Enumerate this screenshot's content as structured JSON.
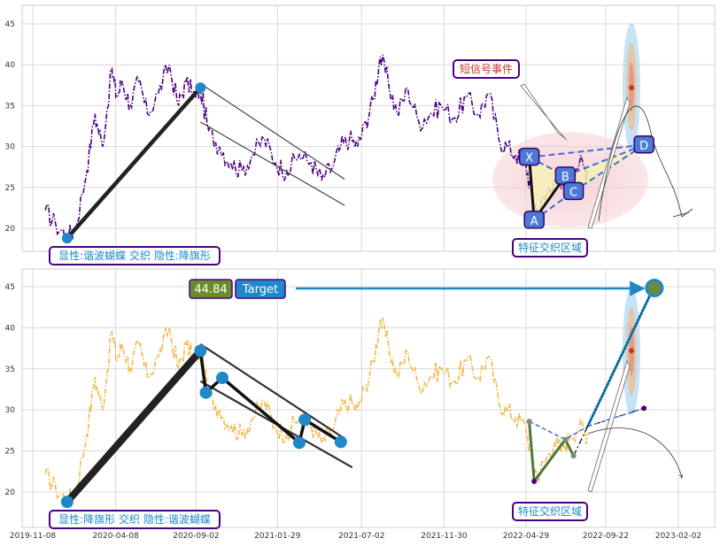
{
  "chart_data": [
    {
      "type": "line",
      "panel": "top",
      "ylim": [
        15,
        47
      ],
      "yticks": [
        20,
        25,
        30,
        35,
        40,
        45
      ],
      "x_date_range": [
        "2019-11-08",
        "2023-02-02"
      ],
      "grid": true,
      "legend": "none",
      "series": [
        {
          "color": "#4b0082",
          "style": "dash-dot",
          "points": [
            [
              "2019-12-01",
              22.2
            ],
            [
              "2019-12-20",
              20.5
            ],
            [
              "2020-01-10",
              19.0
            ],
            [
              "2020-01-25",
              20.0
            ],
            [
              "2020-02-15",
              27.0
            ],
            [
              "2020-03-01",
              34.0
            ],
            [
              "2020-03-15",
              30.0
            ],
            [
              "2020-04-01",
              39.5
            ],
            [
              "2020-04-10",
              36.0
            ],
            [
              "2020-04-20",
              38.0
            ],
            [
              "2020-05-05",
              35.0
            ],
            [
              "2020-05-20",
              38.0
            ],
            [
              "2020-06-05",
              34.0
            ],
            [
              "2020-06-25",
              36.5
            ],
            [
              "2020-07-15",
              40.0
            ],
            [
              "2020-08-01",
              35.0
            ],
            [
              "2020-08-15",
              38.0
            ],
            [
              "2020-09-01",
              36.0
            ],
            [
              "2020-09-10",
              37.0
            ],
            [
              "2020-09-25",
              32.0
            ],
            [
              "2020-10-15",
              30.0
            ],
            [
              "2020-11-05",
              28.0
            ],
            [
              "2020-11-25",
              27.0
            ],
            [
              "2020-12-15",
              29.0
            ],
            [
              "2021-01-05",
              31.0
            ],
            [
              "2021-01-25",
              28.0
            ],
            [
              "2021-02-15",
              27.0
            ],
            [
              "2021-03-10",
              29.0
            ],
            [
              "2021-04-01",
              28.0
            ],
            [
              "2021-04-20",
              26.0
            ],
            [
              "2021-05-10",
              27.5
            ],
            [
              "2021-05-25",
              30.0
            ],
            [
              "2021-06-10",
              31.0
            ],
            [
              "2021-06-25",
              30.0
            ],
            [
              "2021-07-10",
              33.0
            ],
            [
              "2021-07-25",
              36.0
            ],
            [
              "2021-08-05",
              41.0
            ],
            [
              "2021-08-20",
              38.0
            ],
            [
              "2021-09-05",
              34.0
            ],
            [
              "2021-09-25",
              37.0
            ],
            [
              "2021-10-15",
              33.0
            ],
            [
              "2021-11-05",
              34.0
            ],
            [
              "2021-11-25",
              35.0
            ],
            [
              "2021-12-20",
              33.5
            ],
            [
              "2022-01-10",
              36.0
            ],
            [
              "2022-02-01",
              34.0
            ],
            [
              "2022-02-20",
              36.5
            ],
            [
              "2022-03-10",
              31.0
            ],
            [
              "2022-03-25",
              30.0
            ],
            [
              "2022-04-10",
              29.0
            ],
            [
              "2022-04-29",
              28.0
            ],
            [
              "2022-05-10",
              24.0
            ],
            [
              "2022-05-20",
              22.0
            ],
            [
              "2022-06-05",
              24.0
            ],
            [
              "2022-06-20",
              26.0
            ],
            [
              "2022-07-05",
              25.0
            ],
            [
              "2022-07-20",
              27.0
            ],
            [
              "2022-08-05",
              28.0
            ],
            [
              "2022-08-20",
              27.0
            ]
          ]
        }
      ],
      "pattern": {
        "main_trend_line": [
          [
            "2020-01-10",
            18.8
          ],
          [
            "2020-09-10",
            37.2
          ]
        ],
        "flag_channel": [
          [
            [
              "2020-09-10",
              37.7
            ],
            [
              "2021-06-01",
              26.0
            ]
          ],
          [
            [
              "2020-09-10",
              33.0
            ],
            [
              "2021-06-01",
              22.8
            ]
          ]
        ],
        "points": [
          {
            "label": "X",
            "date": "2022-05-05",
            "value": 28.7
          },
          {
            "label": "A",
            "date": "2022-05-14",
            "value": 21.0
          },
          {
            "label": "B",
            "date": "2022-07-10",
            "value": 26.4
          },
          {
            "label": "C",
            "date": "2022-07-25",
            "value": 24.5
          },
          {
            "label": "D",
            "date": "2022-12-01",
            "value": 30.2
          }
        ],
        "projected_target": 37.2
      },
      "annotations": {
        "short_signal": "短信号事件",
        "feature_zone": "特征交织区域",
        "pattern_label": "显性:谐波蝴蝶 交织 隐性:降旗形"
      }
    },
    {
      "type": "line",
      "panel": "bottom",
      "ylim": [
        15,
        47
      ],
      "yticks": [
        20,
        25,
        30,
        35,
        40,
        45
      ],
      "x_date_range": [
        "2019-11-08",
        "2023-02-02"
      ],
      "xticks": [
        "2019-11-08",
        "2020-04-08",
        "2020-09-02",
        "2021-01-29",
        "2021-07-02",
        "2021-11-30",
        "2022-04-29",
        "2022-09-22",
        "2023-02-02"
      ],
      "grid": true,
      "legend": "none",
      "series": [
        {
          "color": "#f0b848",
          "style": "dash-dot",
          "points": [
            [
              "2019-12-01",
              22.2
            ],
            [
              "2019-12-20",
              20.5
            ],
            [
              "2020-01-10",
              19.0
            ],
            [
              "2020-01-25",
              20.0
            ],
            [
              "2020-02-15",
              27.0
            ],
            [
              "2020-03-01",
              34.0
            ],
            [
              "2020-03-15",
              30.0
            ],
            [
              "2020-04-01",
              39.5
            ],
            [
              "2020-04-10",
              36.0
            ],
            [
              "2020-04-20",
              38.0
            ],
            [
              "2020-05-05",
              35.0
            ],
            [
              "2020-05-20",
              38.0
            ],
            [
              "2020-06-05",
              34.0
            ],
            [
              "2020-06-25",
              36.5
            ],
            [
              "2020-07-15",
              40.0
            ],
            [
              "2020-08-01",
              35.0
            ],
            [
              "2020-08-15",
              38.0
            ],
            [
              "2020-09-01",
              36.0
            ],
            [
              "2020-09-10",
              37.0
            ],
            [
              "2020-09-25",
              32.0
            ],
            [
              "2020-10-15",
              30.0
            ],
            [
              "2020-11-05",
              28.0
            ],
            [
              "2020-11-25",
              27.0
            ],
            [
              "2020-12-15",
              29.0
            ],
            [
              "2021-01-05",
              31.0
            ],
            [
              "2021-01-25",
              28.0
            ],
            [
              "2021-02-15",
              27.0
            ],
            [
              "2021-03-10",
              29.0
            ],
            [
              "2021-04-01",
              28.0
            ],
            [
              "2021-04-20",
              26.0
            ],
            [
              "2021-05-10",
              27.5
            ],
            [
              "2021-05-25",
              30.0
            ],
            [
              "2021-06-10",
              31.0
            ],
            [
              "2021-06-25",
              30.0
            ],
            [
              "2021-07-10",
              33.0
            ],
            [
              "2021-07-25",
              36.0
            ],
            [
              "2021-08-05",
              41.0
            ],
            [
              "2021-08-20",
              38.0
            ],
            [
              "2021-09-05",
              34.0
            ],
            [
              "2021-09-25",
              37.0
            ],
            [
              "2021-10-15",
              33.0
            ],
            [
              "2021-11-05",
              34.0
            ],
            [
              "2021-11-25",
              35.0
            ],
            [
              "2021-12-20",
              33.5
            ],
            [
              "2022-01-10",
              36.0
            ],
            [
              "2022-02-01",
              34.0
            ],
            [
              "2022-02-20",
              36.5
            ],
            [
              "2022-03-10",
              31.0
            ],
            [
              "2022-03-25",
              30.0
            ],
            [
              "2022-04-10",
              29.0
            ],
            [
              "2022-04-29",
              28.0
            ],
            [
              "2022-05-10",
              24.0
            ],
            [
              "2022-05-20",
              22.0
            ],
            [
              "2022-06-05",
              24.0
            ],
            [
              "2022-06-20",
              26.0
            ],
            [
              "2022-07-05",
              25.0
            ],
            [
              "2022-07-20",
              27.0
            ],
            [
              "2022-08-05",
              28.0
            ],
            [
              "2022-08-20",
              27.0
            ]
          ]
        }
      ],
      "pattern": {
        "flag_points": [
          [
            "2020-01-10",
            18.8
          ],
          [
            "2020-09-10",
            37.2
          ],
          [
            "2020-09-20",
            32.1
          ],
          [
            "2020-10-20",
            33.9
          ],
          [
            "2021-03-10",
            26.0
          ],
          [
            "2021-03-20",
            28.8
          ],
          [
            "2021-05-25",
            26.1
          ]
        ],
        "flag_channel": [
          [
            [
              "2020-09-10",
              38.0
            ],
            [
              "2021-06-01",
              26.5
            ]
          ],
          [
            [
              "2020-09-10",
              33.5
            ],
            [
              "2021-06-15",
              23.0
            ]
          ]
        ],
        "harmonic_points": [
          [
            "2022-05-05",
            28.6
          ],
          [
            "2022-05-14",
            21.3
          ],
          [
            "2022-07-10",
            26.4
          ],
          [
            "2022-07-25",
            24.4
          ],
          [
            "2022-08-20",
            28.0
          ],
          [
            "2022-12-01",
            30.2
          ]
        ],
        "target_point": [
          "2022-12-20",
          44.84
        ],
        "secondary_target": 37.2
      },
      "annotations": {
        "target_value": "44.84",
        "target_label": "Target",
        "feature_zone": "特征交织区域",
        "pattern_label": "显性:降旗形 交织 隐性:谐波蝴蝶"
      }
    }
  ]
}
